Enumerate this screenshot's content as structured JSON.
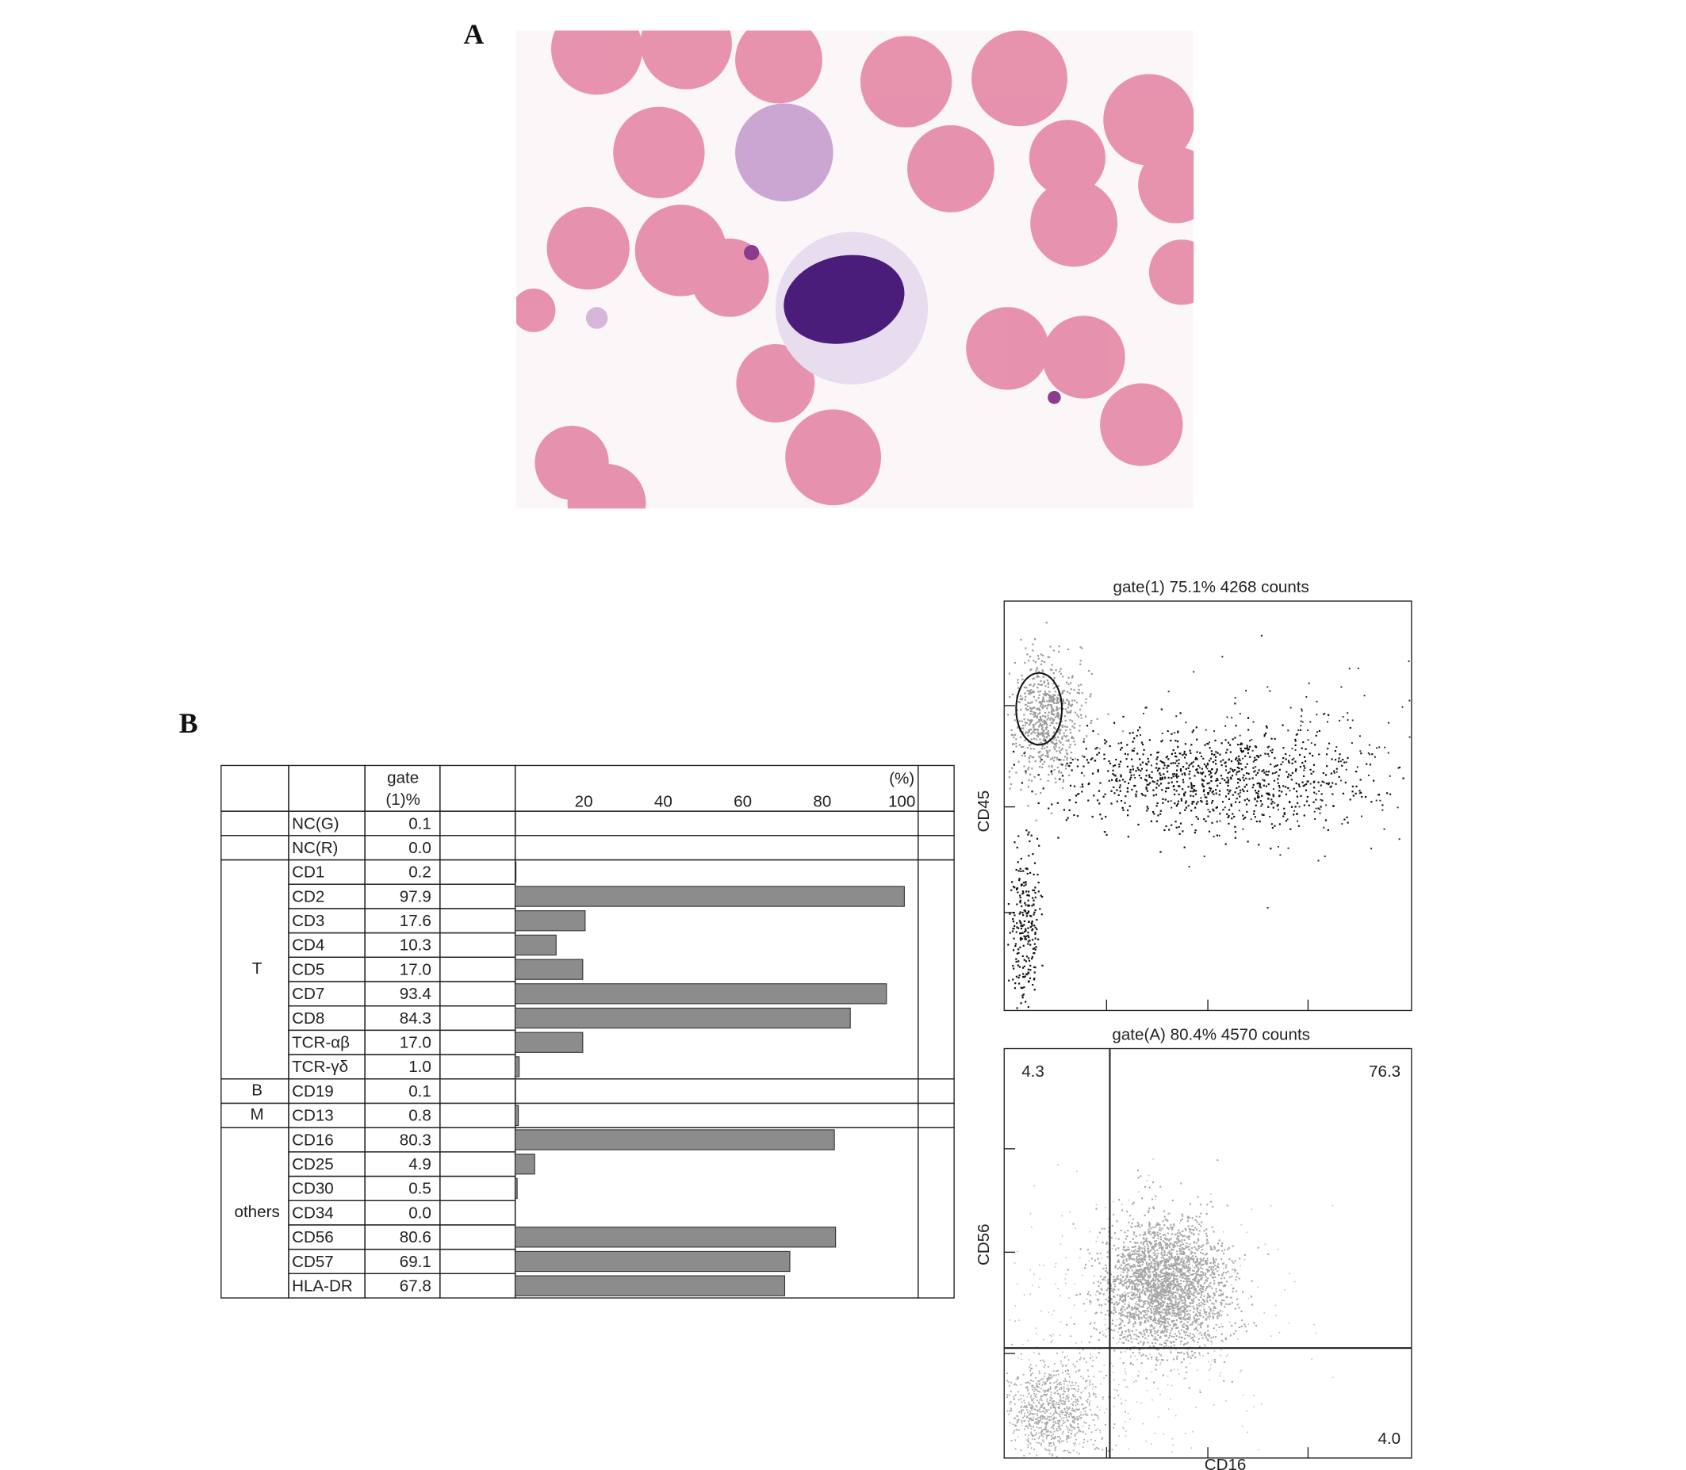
{
  "panel_a": {
    "label": "A"
  },
  "panel_b": {
    "label": "B"
  },
  "table": {
    "header_value": [
      "gate",
      "(1)%"
    ],
    "bar_axis": {
      "unit": "(%)",
      "xlim": [
        0,
        100
      ],
      "ticks": [
        20,
        40,
        60,
        80,
        100
      ]
    },
    "groups": [
      {
        "markers": [
          {
            "name": "NC(G)",
            "value": 0.1
          }
        ]
      },
      {
        "markers": [
          {
            "name": "NC(R)",
            "value": {
              "value": 0,
              "label": "0.0"
            }
          }
        ]
      },
      {
        "label": "T",
        "markers": [
          {
            "name": "CD1",
            "value": 0.2
          },
          {
            "name": "CD2",
            "value": 97.9
          },
          {
            "name": "CD3",
            "value": 17.6
          },
          {
            "name": "CD4",
            "value": 10.3
          },
          {
            "name": "CD5",
            "value": {
              "value": 17,
              "label": "17.0"
            }
          },
          {
            "name": "CD7",
            "value": 93.4
          },
          {
            "name": "CD8",
            "value": 84.3
          },
          {
            "name": "TCR-αβ",
            "value": {
              "value": 17,
              "label": "17.0"
            }
          },
          {
            "name": "TCR-γδ",
            "value": {
              "value": 1,
              "label": "1.0"
            }
          }
        ]
      },
      {
        "label": "B",
        "markers": [
          {
            "name": "CD19",
            "value": 0.1
          }
        ]
      },
      {
        "label": "M",
        "markers": [
          {
            "name": "CD13",
            "value": 0.8
          }
        ]
      },
      {
        "label": "others",
        "markers": [
          {
            "name": "CD16",
            "value": 80.3
          },
          {
            "name": "CD25",
            "value": 4.9
          },
          {
            "name": "CD30",
            "value": 0.5
          },
          {
            "name": "CD34",
            "value": {
              "value": 0,
              "label": "0.0"
            }
          },
          {
            "name": "CD56",
            "value": 80.6
          },
          {
            "name": "CD57",
            "value": 69.1
          },
          {
            "name": "HLA-DR",
            "value": 67.8
          }
        ]
      }
    ]
  },
  "flow_plots": [
    {
      "title": "gate(1) 75.1% 4268 counts",
      "y_label": "CD45"
    },
    {
      "title": "gate(A) 80.4% 4570 counts",
      "x_label": "CD16",
      "y_label": "CD56",
      "quadrants": {
        "upper_left": "4.3",
        "upper_right": "76.3",
        "lower_right": "4.0"
      }
    }
  ]
}
